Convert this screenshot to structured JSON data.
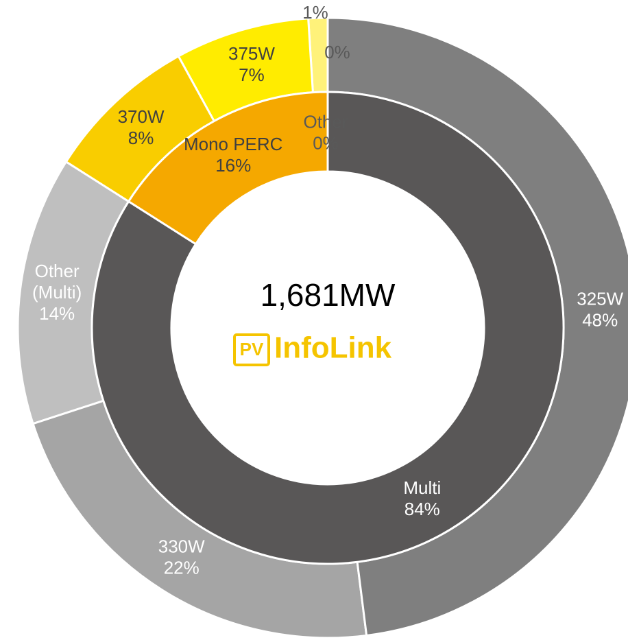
{
  "chart_data": {
    "type": "donut",
    "center_label": "1,681MW",
    "logo": {
      "badge": "PV",
      "text": "InfoLink"
    },
    "rings": [
      {
        "categories": [
          "Multi",
          "Mono PERC",
          "Other"
        ],
        "values": [
          84,
          16,
          0
        ],
        "value_labels": [
          "84%",
          "16%",
          "0%"
        ],
        "colors": [
          "#595757",
          "#f5a800",
          "#d9d9d9"
        ],
        "label_colors": [
          "#ffffff",
          "#404040",
          "#595959"
        ]
      },
      {
        "categories": [
          "325W",
          "330W",
          "Other (Multi)",
          "370W",
          "375W",
          null,
          null
        ],
        "values": [
          48,
          22,
          14,
          8,
          7,
          1,
          0
        ],
        "value_labels": [
          "48%",
          "22%",
          "14%",
          "8%",
          "7%",
          "1%",
          "0%"
        ],
        "colors": [
          "#7f7f7f",
          "#a5a5a5",
          "#bfbfbf",
          "#f9cd00",
          "#ffec00",
          "#fff27a",
          "#d9d9d9"
        ],
        "label_colors": [
          "#ffffff",
          "#ffffff",
          "#ffffff",
          "#404040",
          "#404040",
          "#595959",
          "#595959"
        ]
      }
    ]
  }
}
